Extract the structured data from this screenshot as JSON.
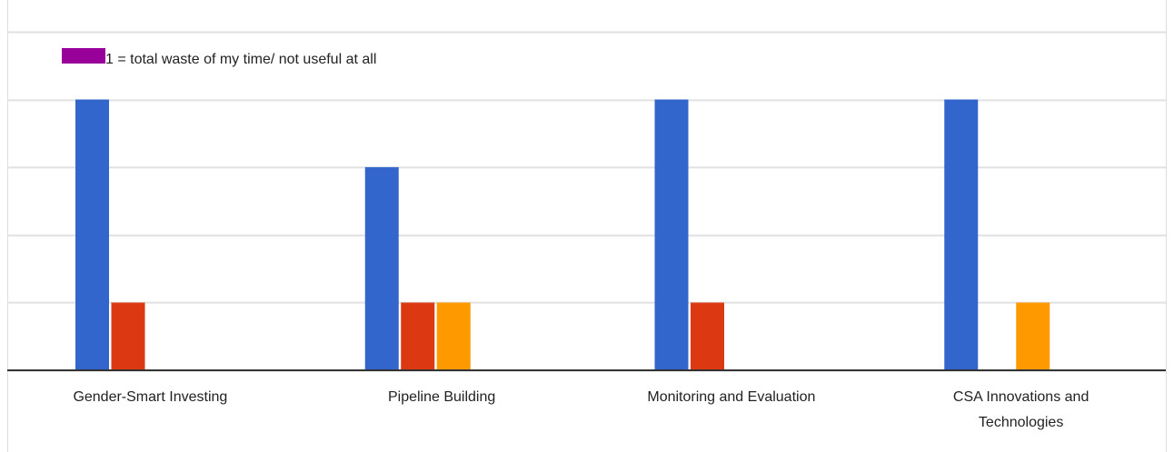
{
  "chart_data": {
    "type": "bar",
    "categories": [
      "Gender-Smart Investing",
      "Pipeline Building",
      "Monitoring and Evaluation",
      "CSA Innovations and Technologies"
    ],
    "series": [
      {
        "color": "#3366cc",
        "values": [
          4,
          3,
          4,
          4
        ]
      },
      {
        "color": "#dc3912",
        "values": [
          1,
          1,
          1,
          0
        ]
      },
      {
        "color": "#ff9900",
        "values": [
          0,
          1,
          0,
          1
        ]
      },
      {
        "name": "1 = total waste of my time/ not useful at all",
        "color": "#990099",
        "values": [
          0,
          0,
          0,
          0
        ]
      }
    ],
    "ylim": [
      0,
      5
    ],
    "yticks": [
      0,
      1,
      2,
      3,
      4,
      5
    ],
    "grid": true,
    "legend": "top"
  }
}
